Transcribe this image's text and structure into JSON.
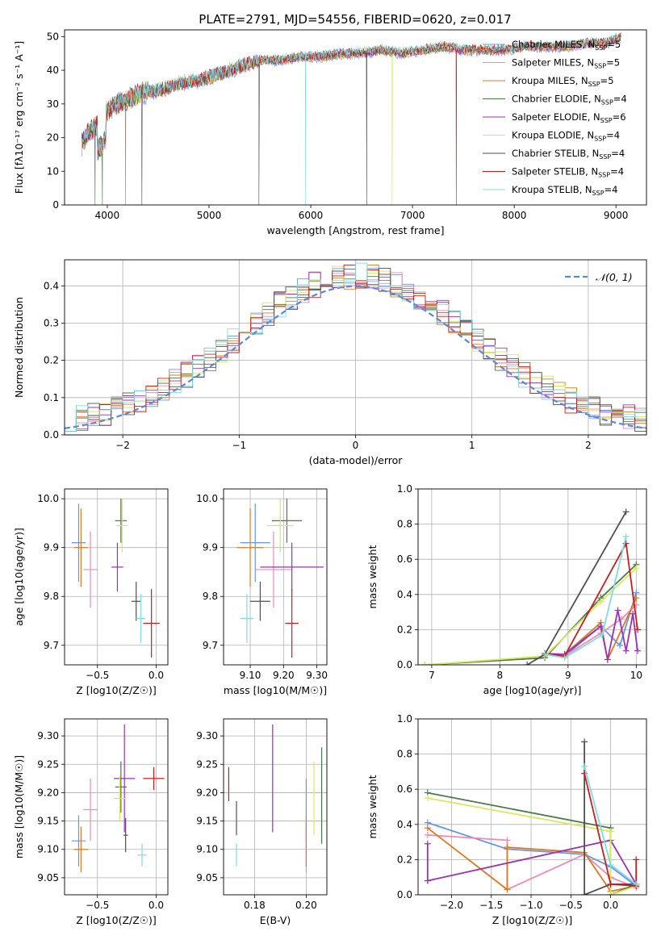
{
  "title": "PLATE=2791, MJD=54556, FIBERID=0620, z=0.017",
  "models": [
    {
      "name": "Chabrier MILES",
      "nssp": "5",
      "color": "#6495ed"
    },
    {
      "name": "Salpeter MILES",
      "nssp": "5",
      "color": "#f08ab4"
    },
    {
      "name": "Kroupa MILES",
      "nssp": "5",
      "color": "#e07820"
    },
    {
      "name": "Chabrier ELODIE",
      "nssp": "4",
      "color": "#4a7a4a"
    },
    {
      "name": "Salpeter ELODIE",
      "nssp": "6",
      "color": "#9b30b8"
    },
    {
      "name": "Kroupa ELODIE",
      "nssp": "4",
      "color": "#d8e85a"
    },
    {
      "name": "Chabrier STELIB",
      "nssp": "4",
      "color": "#505050"
    },
    {
      "name": "Salpeter STELIB",
      "nssp": "4",
      "color": "#c81e1e"
    },
    {
      "name": "Kroupa STELIB",
      "nssp": "4",
      "color": "#7fdde0"
    }
  ],
  "chart_data": [
    {
      "type": "line",
      "panel": "spectrum",
      "xlabel": "wavelength [Angstrom, rest frame]",
      "ylabel": "Flux [fλ10⁻¹⁷ erg cm⁻² s⁻¹ A⁻¹]",
      "xlim": [
        3580,
        9300
      ],
      "ylim": [
        0,
        52
      ],
      "xticks": [
        4000,
        5000,
        6000,
        7000,
        8000,
        9000
      ],
      "yticks": [
        0,
        10,
        20,
        30,
        40,
        50
      ],
      "x": [
        3750,
        3800,
        3900,
        4000,
        4100,
        4200,
        4300,
        4500,
        4700,
        4900,
        5100,
        5300,
        5500,
        5700,
        5900,
        6100,
        6300,
        6500,
        6700,
        6900,
        7100,
        7300,
        7500,
        7700,
        7900,
        8100,
        8300,
        8500,
        8700,
        8900,
        9050
      ],
      "y": [
        18,
        21,
        24,
        28,
        30,
        31,
        33,
        34,
        36,
        37,
        39,
        41,
        43,
        43,
        44,
        44,
        45,
        45,
        46,
        45,
        46,
        47,
        46,
        46,
        46,
        47,
        47,
        47,
        48,
        48,
        50
      ],
      "legend_position": "upper right"
    },
    {
      "type": "line",
      "panel": "residuals",
      "xlabel": "(data-model)/error",
      "ylabel": "Normed distribution",
      "xlim": [
        -2.5,
        2.5
      ],
      "ylim": [
        0,
        0.47
      ],
      "xticks": [
        -2,
        -1,
        0,
        1,
        2
      ],
      "yticks": [
        0.0,
        0.1,
        0.2,
        0.3,
        0.4
      ],
      "grid": true,
      "bin_edges": [
        -2.5,
        -2.4,
        -2.3,
        -2.2,
        -2.1,
        -2.0,
        -1.9,
        -1.8,
        -1.7,
        -1.6,
        -1.5,
        -1.4,
        -1.3,
        -1.2,
        -1.1,
        -1.0,
        -0.9,
        -0.8,
        -0.7,
        -0.6,
        -0.5,
        -0.4,
        -0.3,
        -0.2,
        -0.1,
        0.0,
        0.1,
        0.2,
        0.3,
        0.4,
        0.5,
        0.6,
        0.7,
        0.8,
        0.9,
        1.0,
        1.1,
        1.2,
        1.3,
        1.4,
        1.5,
        1.6,
        1.7,
        1.8,
        1.9,
        2.0,
        2.1,
        2.2,
        2.3,
        2.4,
        2.5
      ],
      "gaussian_label": "𝒩(0, 1)",
      "gaussian_color": "#5a88d8",
      "legend_position": "upper right"
    },
    {
      "type": "scatter",
      "panel": "age-Z",
      "xlabel": "Z [log10(Z/Z☉)]",
      "ylabel": "age  [log10(age/yr)]",
      "xlim": [
        -0.78,
        0.1
      ],
      "ylim": [
        9.66,
        10.02
      ],
      "xticks": [
        -0.5,
        0.0
      ],
      "yticks": [
        9.7,
        9.8,
        9.9,
        10.0
      ],
      "points": [
        {
          "x": -0.66,
          "y": 9.91,
          "xerr": 0.06,
          "yerr": 0.08
        },
        {
          "x": -0.56,
          "y": 9.855,
          "xerr": 0.06,
          "yerr": 0.078
        },
        {
          "x": -0.64,
          "y": 9.9,
          "xerr": 0.06,
          "yerr": 0.08
        },
        {
          "x": -0.3,
          "y": 9.955,
          "xerr": 0.05,
          "yerr": 0.045
        },
        {
          "x": -0.33,
          "y": 9.86,
          "xerr": 0.05,
          "yerr": 0.05
        },
        {
          "x": -0.29,
          "y": 9.945,
          "xerr": 0.05,
          "yerr": 0.055
        },
        {
          "x": -0.17,
          "y": 9.79,
          "xerr": 0.04,
          "yerr": 0.04
        },
        {
          "x": -0.04,
          "y": 9.745,
          "xerr": 0.07,
          "yerr": 0.07
        },
        {
          "x": -0.13,
          "y": 9.755,
          "xerr": 0.04,
          "yerr": 0.05
        }
      ]
    },
    {
      "type": "scatter",
      "panel": "age-mass",
      "xlabel": "mass [log10(M/M☉)]",
      "ylabel": "",
      "xlim": [
        9.02,
        9.33
      ],
      "ylim": [
        9.66,
        10.02
      ],
      "xticks": [
        9.1,
        9.2,
        9.3
      ],
      "yticks": [
        9.7,
        9.8,
        9.9,
        10.0
      ],
      "points": [
        {
          "x": 9.115,
          "y": 9.91,
          "xerr": 0.045,
          "yerr": 0.08
        },
        {
          "x": 9.17,
          "y": 9.855,
          "xerr": 0.055,
          "yerr": 0.078
        },
        {
          "x": 9.1,
          "y": 9.9,
          "xerr": 0.04,
          "yerr": 0.08
        },
        {
          "x": 9.21,
          "y": 9.955,
          "xerr": 0.045,
          "yerr": 0.045
        },
        {
          "x": 9.225,
          "y": 9.86,
          "xerr": 0.095,
          "yerr": 0.05
        },
        {
          "x": 9.19,
          "y": 9.945,
          "xerr": 0.04,
          "yerr": 0.055
        },
        {
          "x": 9.13,
          "y": 9.79,
          "xerr": 0.03,
          "yerr": 0.04
        },
        {
          "x": 9.225,
          "y": 9.745,
          "xerr": 0.02,
          "yerr": 0.07
        },
        {
          "x": 9.09,
          "y": 9.755,
          "xerr": 0.02,
          "yerr": 0.05
        }
      ]
    },
    {
      "type": "line",
      "panel": "weight-age",
      "xlabel": "age  [log10(age/yr)]",
      "ylabel": "mass weight",
      "xlim": [
        6.8,
        10.15
      ],
      "ylim": [
        0,
        1.0
      ],
      "xticks": [
        7,
        8,
        9,
        10
      ],
      "yticks": [
        0.0,
        0.2,
        0.4,
        0.6,
        0.8,
        1.0
      ],
      "grid": true,
      "series": [
        {
          "x": [
            8.66,
            8.95,
            9.48,
            9.76,
            10.0
          ],
          "y": [
            0.065,
            0.05,
            0.22,
            0.11,
            0.41
          ]
        },
        {
          "x": [
            8.66,
            8.95,
            9.48,
            9.78,
            10.0
          ],
          "y": [
            0.065,
            0.05,
            0.18,
            0.26,
            0.34
          ]
        },
        {
          "x": [
            8.66,
            8.95,
            9.48,
            9.58,
            10.0
          ],
          "y": [
            0.065,
            0.06,
            0.24,
            0.03,
            0.38
          ]
        },
        {
          "x": [
            6.9,
            8.66,
            9.48,
            10.0
          ],
          "y": [
            0.0,
            0.04,
            0.38,
            0.57
          ]
        },
        {
          "x": [
            8.66,
            8.95,
            9.48,
            9.58,
            9.73,
            9.85,
            9.95,
            10.02
          ],
          "y": [
            0.06,
            0.06,
            0.22,
            0.03,
            0.31,
            0.08,
            0.29,
            0.08
          ]
        },
        {
          "x": [
            6.9,
            8.66,
            9.48,
            10.0
          ],
          "y": [
            0.0,
            0.05,
            0.36,
            0.55
          ]
        },
        {
          "x": [
            8.4,
            8.66,
            9.85
          ],
          "y": [
            0.0,
            0.06,
            0.87
          ]
        },
        {
          "x": [
            8.66,
            8.95,
            9.85,
            10.02
          ],
          "y": [
            0.06,
            0.05,
            0.69,
            0.2
          ]
        },
        {
          "x": [
            8.66,
            8.95,
            9.5,
            9.85
          ],
          "y": [
            0.06,
            0.04,
            0.17,
            0.73
          ]
        }
      ]
    },
    {
      "type": "scatter",
      "panel": "mass-Z",
      "xlabel": "Z [log10(Z/Z☉)]",
      "ylabel": "mass [log10(M/M☉)]",
      "xlim": [
        -0.78,
        0.1
      ],
      "ylim": [
        9.02,
        9.33
      ],
      "xticks": [
        -0.5,
        0.0
      ],
      "yticks": [
        9.05,
        9.1,
        9.15,
        9.2,
        9.25,
        9.3
      ],
      "points": [
        {
          "x": -0.66,
          "y": 9.115,
          "xerr": 0.06,
          "yerr": 0.045
        },
        {
          "x": -0.56,
          "y": 9.17,
          "xerr": 0.06,
          "yerr": 0.055
        },
        {
          "x": -0.64,
          "y": 9.1,
          "xerr": 0.06,
          "yerr": 0.04
        },
        {
          "x": -0.3,
          "y": 9.21,
          "xerr": 0.05,
          "yerr": 0.045
        },
        {
          "x": -0.27,
          "y": 9.225,
          "xerr": 0.09,
          "yerr": 0.095
        },
        {
          "x": -0.31,
          "y": 9.19,
          "xerr": 0.05,
          "yerr": 0.04
        },
        {
          "x": -0.26,
          "y": 9.125,
          "xerr": 0.02,
          "yerr": 0.03
        },
        {
          "x": -0.02,
          "y": 9.225,
          "xerr": 0.09,
          "yerr": 0.02
        },
        {
          "x": -0.12,
          "y": 9.09,
          "xerr": 0.04,
          "yerr": 0.02
        }
      ]
    },
    {
      "type": "scatter",
      "panel": "mass-EBV",
      "xlabel": "E(B-V)",
      "ylabel": "",
      "xlim": [
        0.168,
        0.208
      ],
      "ylim": [
        9.02,
        9.33
      ],
      "xticks": [
        0.18,
        0.2
      ],
      "yticks": [
        9.05,
        9.1,
        9.15,
        9.2,
        9.25,
        9.3
      ],
      "points": [
        {
          "x": 0.2,
          "y": 9.17,
          "xerr": 0,
          "yerr": 0.055
        },
        {
          "x": 0.2,
          "y": 9.1,
          "xerr": 0,
          "yerr": 0.04
        },
        {
          "x": 0.2,
          "y": 9.115,
          "xerr": 0,
          "yerr": 0.045
        },
        {
          "x": 0.206,
          "y": 9.195,
          "xerr": 0,
          "yerr": 0.085
        },
        {
          "x": 0.187,
          "y": 9.225,
          "xerr": 0,
          "yerr": 0.095
        },
        {
          "x": 0.203,
          "y": 9.19,
          "xerr": 0,
          "yerr": 0.065
        },
        {
          "x": 0.173,
          "y": 9.155,
          "xerr": 0,
          "yerr": 0.03
        },
        {
          "x": 0.17,
          "y": 9.215,
          "xerr": 0,
          "yerr": 0.03
        },
        {
          "x": 0.173,
          "y": 9.09,
          "xerr": 0,
          "yerr": 0.02
        }
      ]
    },
    {
      "type": "line",
      "panel": "weight-Z",
      "xlabel": "Z [log10(Z/Z☉)]",
      "ylabel": "mass weight",
      "xlim": [
        -2.42,
        0.45
      ],
      "ylim": [
        0,
        1.0
      ],
      "xticks": [
        -2.0,
        -1.5,
        -1.0,
        -0.5,
        0.0
      ],
      "yticks": [
        0.0,
        0.2,
        0.4,
        0.6,
        0.8,
        1.0
      ],
      "grid": true,
      "series": [
        {
          "x": [
            -2.3,
            -1.3,
            -0.33,
            0.0,
            0.32
          ],
          "y": [
            0.41,
            0.26,
            0.23,
            0.16,
            0.05
          ]
        },
        {
          "x": [
            -2.3,
            -1.3,
            -1.3,
            -0.33,
            0.0,
            0.32
          ],
          "y": [
            0.34,
            0.31,
            0.03,
            0.23,
            0.1,
            0.04
          ]
        },
        {
          "x": [
            -2.3,
            -1.3,
            -1.3,
            -0.33,
            0.0,
            0.32
          ],
          "y": [
            0.38,
            0.03,
            0.27,
            0.24,
            0.02,
            0.05
          ]
        },
        {
          "x": [
            -2.3,
            0.0,
            0.0,
            0.32
          ],
          "y": [
            0.58,
            0.38,
            0.0,
            0.06
          ]
        },
        {
          "x": [
            -2.3,
            -2.3,
            -2.3,
            0.0,
            0.32
          ],
          "y": [
            0.08,
            0.29,
            0.08,
            0.31,
            0.06
          ]
        },
        {
          "x": [
            -2.3,
            0.0,
            0.0,
            0.32
          ],
          "y": [
            0.55,
            0.36,
            0.0,
            0.05
          ]
        },
        {
          "x": [
            -0.33,
            -0.33,
            0.0,
            0.32
          ],
          "y": [
            0.87,
            0.0,
            0.06,
            0.06
          ]
        },
        {
          "x": [
            -0.33,
            0.0,
            0.32,
            0.32
          ],
          "y": [
            0.69,
            0.06,
            0.05,
            0.2
          ]
        },
        {
          "x": [
            -0.33,
            0.0,
            0.32
          ],
          "y": [
            0.73,
            0.17,
            0.06
          ]
        }
      ]
    }
  ]
}
